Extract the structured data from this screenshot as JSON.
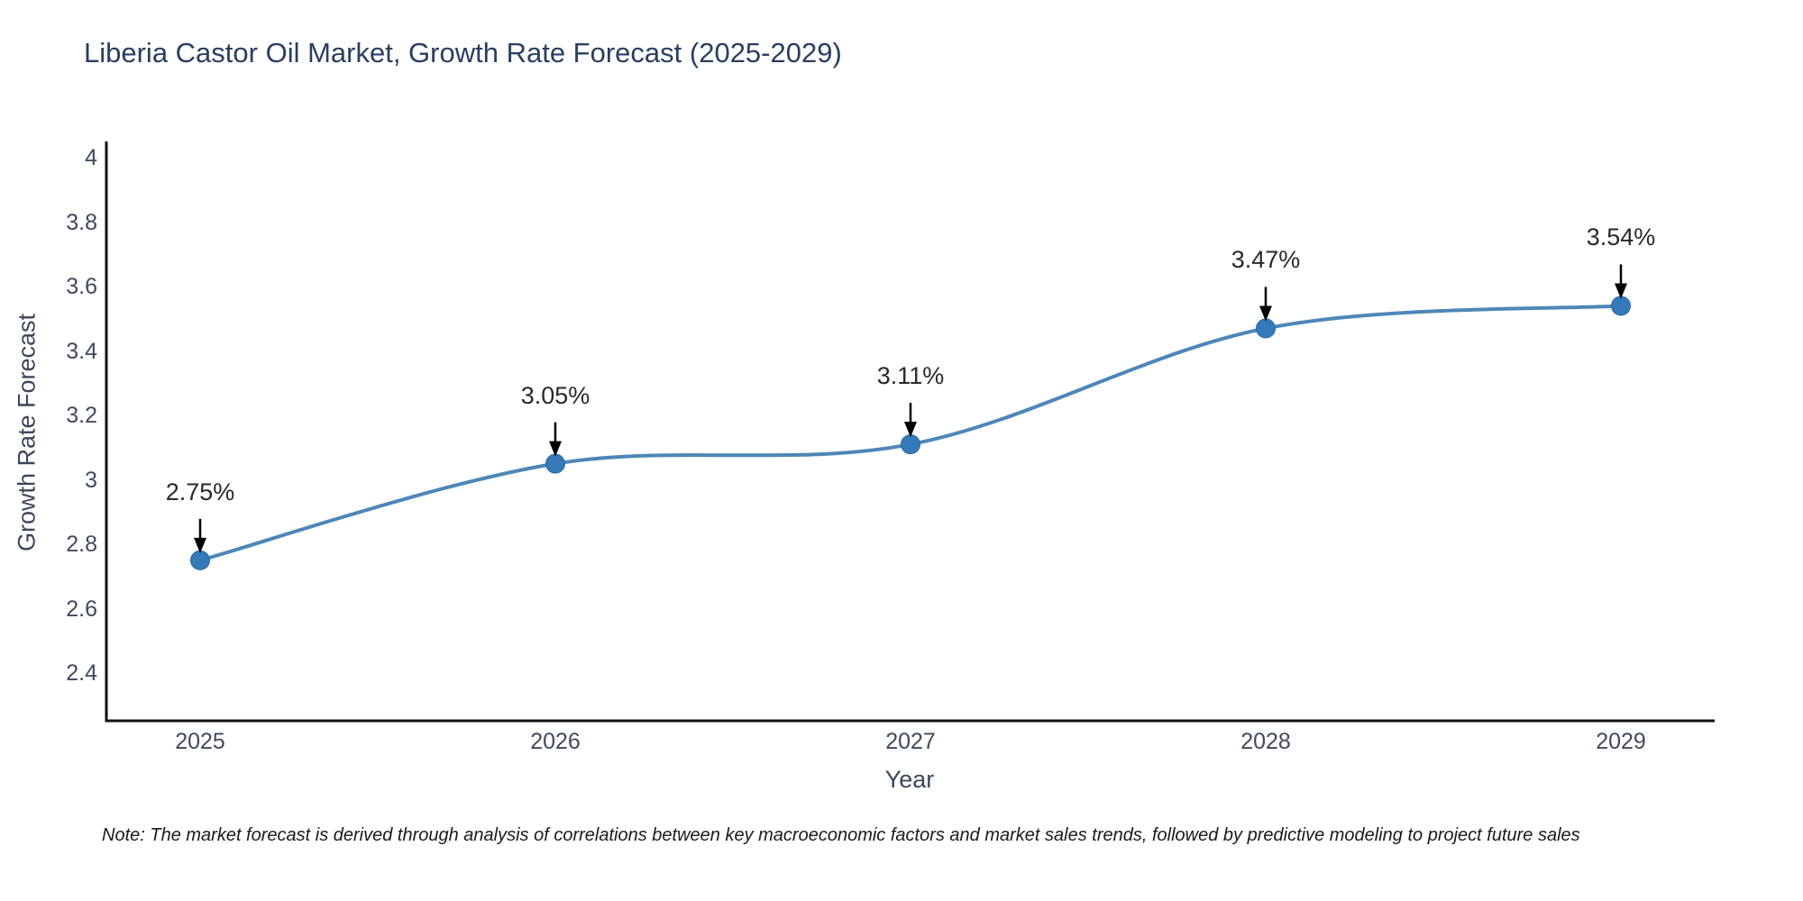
{
  "title": "Liberia Castor Oil Market, Growth Rate Forecast (2025-2029)",
  "note": "Note: The market forecast is derived through analysis of correlations between key macroeconomic factors and market sales trends, followed by predictive modeling to project future sales",
  "chart_data": {
    "type": "line",
    "title": "Liberia Castor Oil Market, Growth Rate Forecast (2025-2029)",
    "x": [
      2025,
      2026,
      2027,
      2028,
      2029
    ],
    "values": [
      2.75,
      3.05,
      3.11,
      3.47,
      3.54
    ],
    "point_labels": [
      "2.75%",
      "3.05%",
      "3.11%",
      "3.47%",
      "3.54%"
    ],
    "series_name": "Growth Rate Forecast",
    "xlabel": "Year",
    "ylabel": "Growth Rate Forecast",
    "xticks": [
      "2025",
      "2026",
      "2027",
      "2028",
      "2029"
    ],
    "yticks": [
      "4",
      "3.8",
      "3.6",
      "3.4",
      "3.2",
      "3",
      "2.8",
      "2.6",
      "2.4"
    ],
    "ytick_values": [
      4,
      3.8,
      3.6,
      3.4,
      3.2,
      3,
      2.8,
      2.6,
      2.4
    ],
    "ylim": [
      2.25,
      4.05
    ],
    "grid": false,
    "legend": false,
    "line_shape": "spline",
    "annotation_arrows": true,
    "colors": {
      "line": "#4e86b8",
      "marker_fill": "#3579b8",
      "marker_stroke": "#2b6aa6",
      "axis_line": "#111111",
      "title_text": "#2a3f5f",
      "tick_text": "#42495b",
      "annotation_text": "#26292f",
      "arrow": "#000000",
      "background": "#ffffff"
    }
  }
}
